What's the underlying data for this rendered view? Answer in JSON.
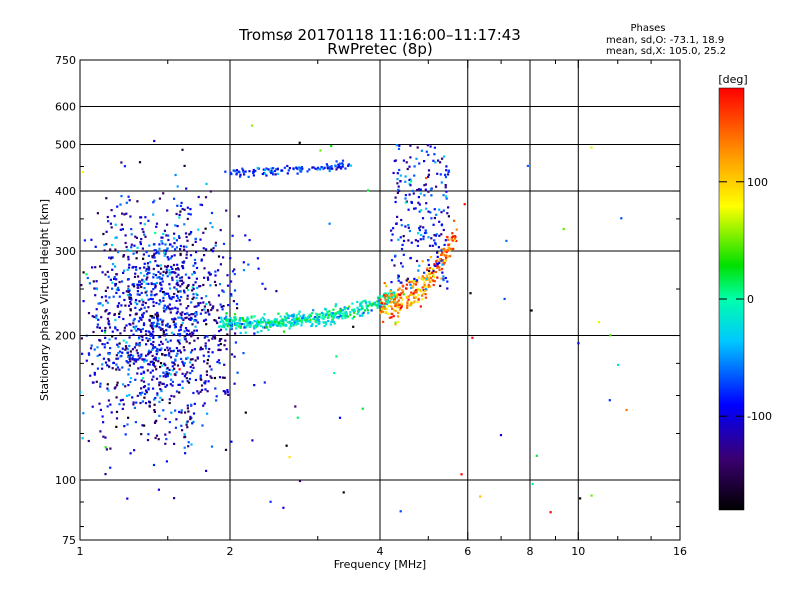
{
  "chart_data": {
    "type": "scatter",
    "title": "Tromsø 20170118 11:16:00–11:17:43",
    "subtitle": "RwPretec (8p)",
    "xlabel": "Frequency [MHz]",
    "ylabel": "Stationary phase Virtual Height [km]",
    "x_scale": "log",
    "y_scale": "log",
    "xlim": [
      1,
      16
    ],
    "ylim": [
      75,
      750
    ],
    "x_ticks": [
      "1",
      "2",
      "4",
      "6",
      "8",
      "10",
      "16"
    ],
    "y_ticks": [
      "750",
      "600",
      "500",
      "400",
      "300",
      "200",
      "100",
      "75"
    ],
    "x_gridlines": [
      2,
      4,
      6,
      8,
      10
    ],
    "y_gridlines": [
      100,
      200,
      300,
      400,
      500,
      600
    ],
    "colorbar": {
      "label": "[deg]",
      "range": [
        -180,
        180
      ],
      "ticks": [
        "100",
        "0",
        "-100"
      ]
    },
    "phase_stats": {
      "heading": "Phases",
      "line1": "mean, sd,O: -73.1, 18.9",
      "line2": "mean, sd,X: 105.0, 25.2"
    },
    "clusters": [
      {
        "id": "low_freq_blob",
        "x_range": [
          1.05,
          2.1
        ],
        "y_range": [
          105,
          330
        ],
        "phase_mean": -100,
        "phase_sd": 35,
        "density": 1400
      },
      {
        "id": "o_trace_curve",
        "x_range": [
          1.9,
          4.3
        ],
        "y_fn": "210-240 km rising toward 4.3 MHz",
        "phase_mean": -10,
        "phase_sd": 25,
        "density": 500
      },
      {
        "id": "x_trace_curve",
        "x_range": [
          4.0,
          5.7
        ],
        "y_fn": "230-330 km rising",
        "phase_mean": 130,
        "phase_sd": 35,
        "density": 260
      },
      {
        "id": "f_layer_upper_o",
        "x_range": [
          4.2,
          5.5
        ],
        "y_range": [
          250,
          500
        ],
        "phase_mean": -90,
        "phase_sd": 30,
        "density": 220
      },
      {
        "id": "high_band_trace",
        "x_range": [
          2.0,
          3.5
        ],
        "y_range": [
          430,
          470
        ],
        "phase_mean": -75,
        "phase_sd": 20,
        "density": 110
      },
      {
        "id": "scatter_outliers",
        "x_range": [
          1.0,
          15.0
        ],
        "y_range": [
          85,
          620
        ],
        "phase_mean": 0,
        "phase_sd": 120,
        "density": 60
      }
    ]
  }
}
